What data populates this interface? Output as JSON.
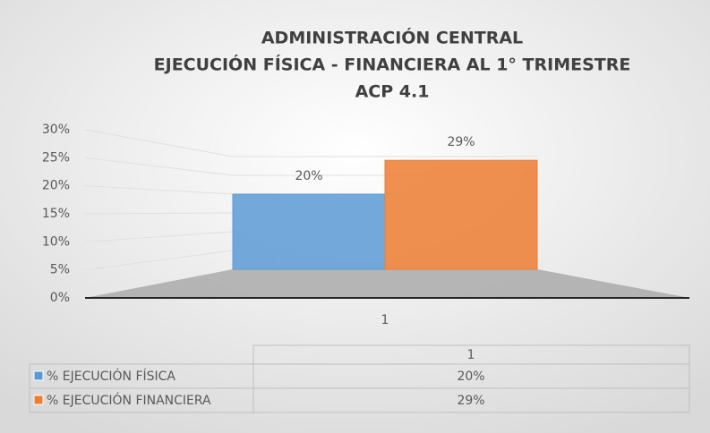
{
  "chart_data": {
    "type": "bar",
    "title": "ADMINISTRACIÓN CENTRAL",
    "subtitle": [
      "EJECUCIÓN FÍSICA - FINANCIERA AL  1° TRIMESTRE",
      "ACP 4.1"
    ],
    "categories": [
      "1"
    ],
    "series": [
      {
        "name": "% EJECUCIÓN FÍSICA",
        "color": "#5b9bd5",
        "values": [
          20
        ],
        "value_labels": [
          "20%"
        ]
      },
      {
        "name": "% EJECUCIÓN  FINANCIERA",
        "color": "#ed7d31",
        "values": [
          29
        ],
        "value_labels": [
          "29%"
        ]
      }
    ],
    "ylim": [
      0,
      30
    ],
    "yticks": [
      {
        "value": 0,
        "label": "0%"
      },
      {
        "value": 5,
        "label": "5%"
      },
      {
        "value": 10,
        "label": "10%"
      },
      {
        "value": 15,
        "label": "15%"
      },
      {
        "value": 20,
        "label": "20%"
      },
      {
        "value": 25,
        "label": "25%"
      },
      {
        "value": 30,
        "label": "30%"
      }
    ],
    "grid": true,
    "data_table": true
  }
}
